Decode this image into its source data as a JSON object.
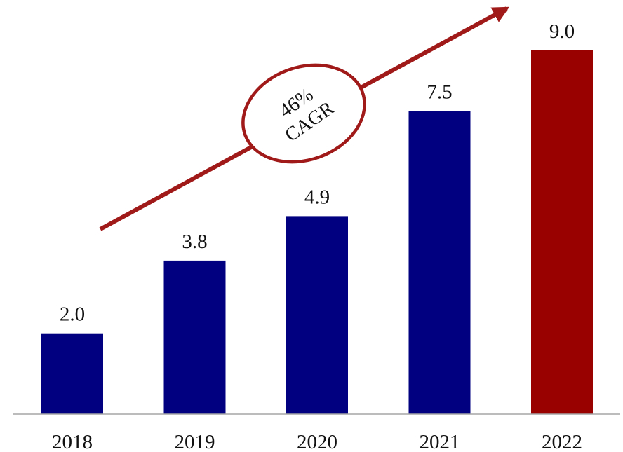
{
  "chart_data": {
    "type": "bar",
    "categories": [
      "2018",
      "2019",
      "2020",
      "2021",
      "2022"
    ],
    "values": [
      2.0,
      3.8,
      4.9,
      7.5,
      9.0
    ],
    "data_labels": [
      "2.0",
      "3.8",
      "4.9",
      "7.5",
      "9.0"
    ],
    "ylim": [
      0,
      9.0
    ],
    "grid": false,
    "colors": {
      "bar": "#000080",
      "highlight": "#990000",
      "axis": "#a6a6a6",
      "annotation": "#a11a1a"
    },
    "highlight_index": 4,
    "annotation": {
      "lines": [
        "46%",
        "CAGR"
      ]
    }
  }
}
